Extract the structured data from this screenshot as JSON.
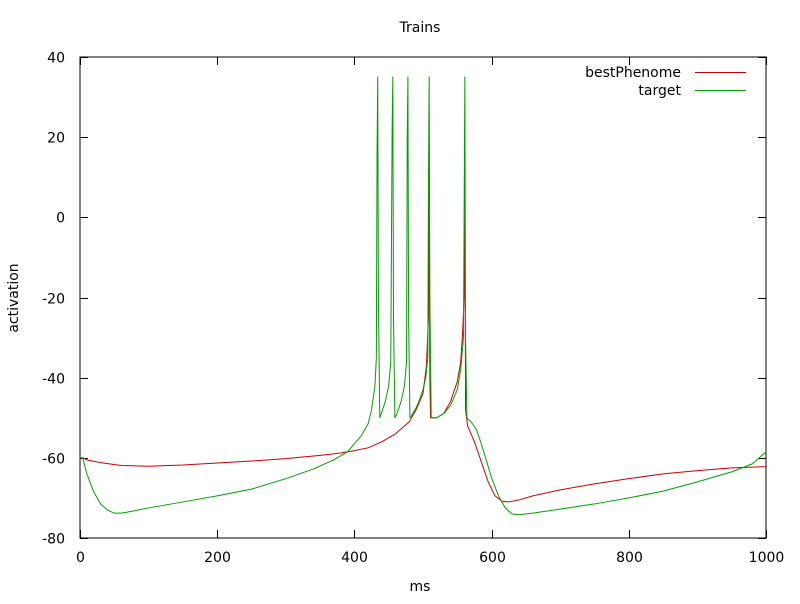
{
  "chart_data": {
    "type": "line",
    "title": "Trains",
    "xlabel": "ms",
    "ylabel": "activation",
    "xlim": [
      0,
      1000
    ],
    "ylim": [
      -80,
      40
    ],
    "x_ticks": [
      "0",
      "200",
      "400",
      "600",
      "800",
      "1000"
    ],
    "y_ticks": [
      "40",
      "20",
      "0",
      "-20",
      "-40",
      "-60",
      "-80"
    ],
    "grid": false,
    "legend_position": "top-right",
    "series": [
      {
        "name": "bestPhenome",
        "color": "#cc0000",
        "points": [
          [
            0,
            -60
          ],
          [
            4,
            -60
          ],
          [
            10,
            -60.5
          ],
          [
            30,
            -61.2
          ],
          [
            60,
            -61.9
          ],
          [
            100,
            -62.1
          ],
          [
            150,
            -61.8
          ],
          [
            200,
            -61.3
          ],
          [
            250,
            -60.8
          ],
          [
            300,
            -60.2
          ],
          [
            350,
            -59.4
          ],
          [
            380,
            -58.8
          ],
          [
            400,
            -58.2
          ],
          [
            420,
            -57.5
          ],
          [
            440,
            -56
          ],
          [
            460,
            -54
          ],
          [
            480,
            -51
          ],
          [
            490,
            -48
          ],
          [
            500,
            -44
          ],
          [
            505,
            -37
          ],
          [
            508,
            -25
          ],
          [
            509,
            9
          ],
          [
            510,
            -40
          ],
          [
            511,
            -50
          ],
          [
            520,
            -50
          ],
          [
            530,
            -49
          ],
          [
            540,
            -46
          ],
          [
            550,
            -41
          ],
          [
            555,
            -36
          ],
          [
            558,
            -28
          ],
          [
            560,
            -20
          ],
          [
            561,
            18
          ],
          [
            562,
            -48
          ],
          [
            565,
            -52
          ],
          [
            575,
            -56
          ],
          [
            585,
            -61
          ],
          [
            595,
            -66
          ],
          [
            605,
            -69.5
          ],
          [
            615,
            -70.8
          ],
          [
            625,
            -71
          ],
          [
            640,
            -70.5
          ],
          [
            660,
            -69.5
          ],
          [
            700,
            -68
          ],
          [
            750,
            -66.5
          ],
          [
            800,
            -65.2
          ],
          [
            850,
            -64
          ],
          [
            900,
            -63.2
          ],
          [
            950,
            -62.5
          ],
          [
            1000,
            -62.2
          ]
        ]
      },
      {
        "name": "target",
        "color": "#00a000",
        "points": [
          [
            0,
            -60
          ],
          [
            4,
            -60
          ],
          [
            10,
            -64
          ],
          [
            20,
            -68.5
          ],
          [
            30,
            -71.5
          ],
          [
            40,
            -73
          ],
          [
            50,
            -73.8
          ],
          [
            60,
            -73.8
          ],
          [
            70,
            -73.5
          ],
          [
            100,
            -72.5
          ],
          [
            150,
            -71
          ],
          [
            200,
            -69.5
          ],
          [
            250,
            -67.8
          ],
          [
            300,
            -65.2
          ],
          [
            340,
            -62.8
          ],
          [
            370,
            -60.5
          ],
          [
            390,
            -58.5
          ],
          [
            400,
            -56.5
          ],
          [
            410,
            -54.5
          ],
          [
            420,
            -51.5
          ],
          [
            425,
            -48
          ],
          [
            430,
            -42
          ],
          [
            432,
            -35
          ],
          [
            433,
            16
          ],
          [
            434,
            35
          ],
          [
            435,
            -20
          ],
          [
            437,
            -50
          ],
          [
            440,
            -48.5
          ],
          [
            445,
            -46
          ],
          [
            450,
            -42
          ],
          [
            453,
            -36
          ],
          [
            455,
            22
          ],
          [
            456,
            35
          ],
          [
            457,
            -25
          ],
          [
            459,
            -50
          ],
          [
            462,
            -49
          ],
          [
            468,
            -46
          ],
          [
            473,
            -42
          ],
          [
            476,
            -36
          ],
          [
            477,
            20
          ],
          [
            478,
            35
          ],
          [
            479,
            -25
          ],
          [
            481,
            -50
          ],
          [
            485,
            -49
          ],
          [
            490,
            -47.5
          ],
          [
            495,
            -45.5
          ],
          [
            500,
            -43
          ],
          [
            504,
            -40
          ],
          [
            507,
            -35
          ],
          [
            508,
            10
          ],
          [
            509,
            35
          ],
          [
            510,
            -20
          ],
          [
            512,
            -50
          ],
          [
            520,
            -50
          ],
          [
            530,
            -49
          ],
          [
            540,
            -47
          ],
          [
            550,
            -43
          ],
          [
            555,
            -38
          ],
          [
            559,
            -30
          ],
          [
            561,
            35
          ],
          [
            562,
            -30
          ],
          [
            564,
            -50
          ],
          [
            570,
            -51
          ],
          [
            578,
            -53
          ],
          [
            585,
            -56.5
          ],
          [
            593,
            -61
          ],
          [
            600,
            -65
          ],
          [
            610,
            -69.5
          ],
          [
            620,
            -72.5
          ],
          [
            630,
            -74
          ],
          [
            640,
            -74.2
          ],
          [
            660,
            -73.8
          ],
          [
            700,
            -72.8
          ],
          [
            750,
            -71.5
          ],
          [
            800,
            -70
          ],
          [
            850,
            -68.3
          ],
          [
            900,
            -66
          ],
          [
            950,
            -63.5
          ],
          [
            980,
            -61.5
          ],
          [
            1000,
            -58.5
          ]
        ]
      }
    ]
  }
}
